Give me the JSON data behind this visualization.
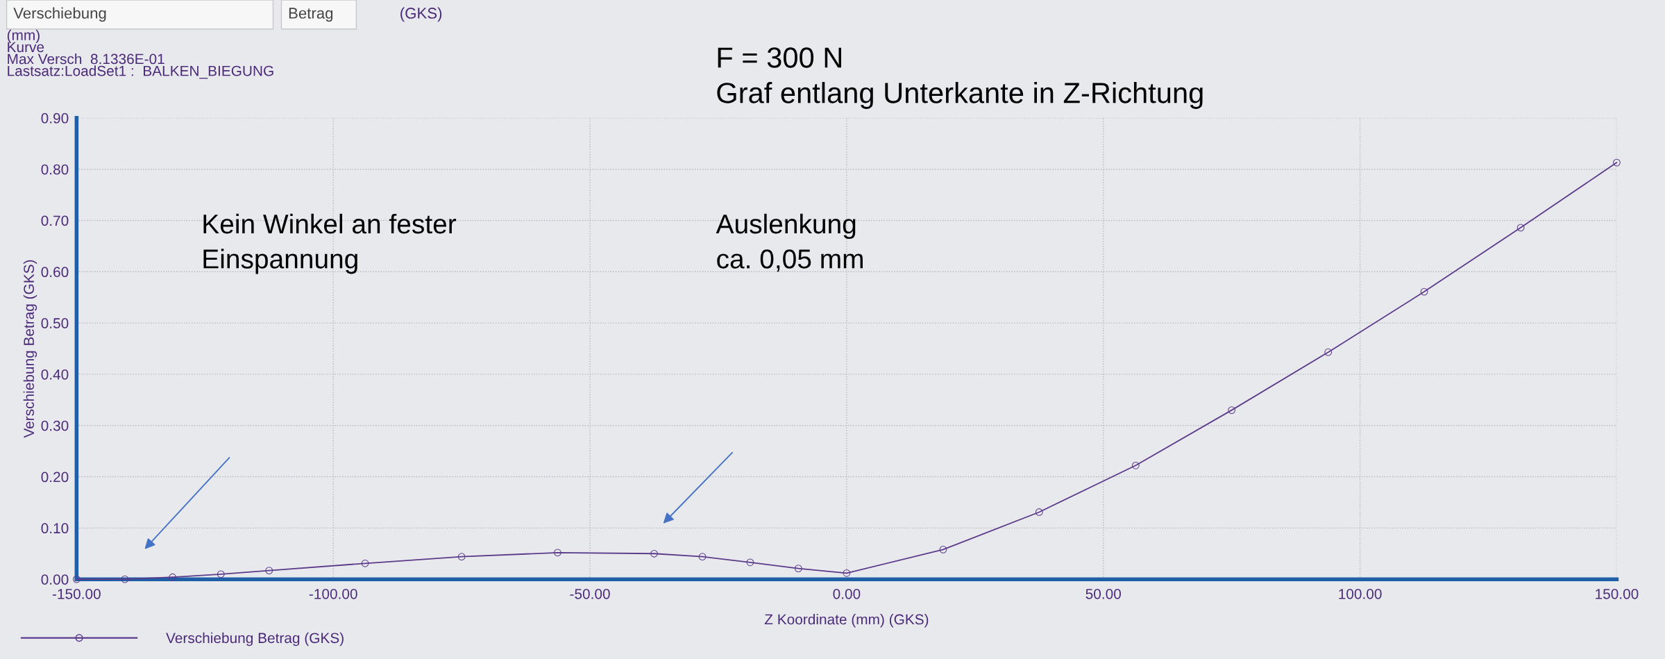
{
  "chart_data": {
    "type": "line",
    "title": "F = 300 N\nGraf entlang Unterkante in Z-Richtung",
    "xlabel": "Z Koordinate (mm) (GKS)",
    "ylabel": "Verschiebung Betrag (GKS)",
    "x": [
      -150,
      -140.6,
      -131.3,
      -121.9,
      -112.5,
      -93.8,
      -75,
      -56.3,
      -37.5,
      -28.1,
      -18.8,
      -9.4,
      0,
      18.8,
      37.5,
      56.3,
      75,
      93.8,
      112.5,
      131.3,
      150
    ],
    "series": [
      {
        "name": "Verschiebung Betrag (GKS)",
        "color": "#5b3a8a",
        "values": [
          0.0,
          0.0,
          0.004,
          0.01,
          0.017,
          0.031,
          0.044,
          0.052,
          0.05,
          0.044,
          0.033,
          0.021,
          0.012,
          0.058,
          0.131,
          0.222,
          0.33,
          0.443,
          0.561,
          0.686,
          0.813
        ]
      }
    ],
    "xlim": [
      -150,
      150
    ],
    "xticks": [
      {
        "value": -150,
        "label": "-150.00"
      },
      {
        "value": -100,
        "label": "-100.00"
      },
      {
        "value": -50,
        "label": "-50.00"
      },
      {
        "value": 0,
        "label": "0.00"
      },
      {
        "value": 50,
        "label": "50.00"
      },
      {
        "value": 100,
        "label": "100.00"
      },
      {
        "value": 150,
        "label": "150.00"
      }
    ],
    "ylim": [
      0,
      0.9
    ],
    "yticks": [
      {
        "value": 0,
        "label": "0.00"
      },
      {
        "value": 0.1,
        "label": "0.10"
      },
      {
        "value": 0.2,
        "label": "0.20"
      },
      {
        "value": 0.3,
        "label": "0.30"
      },
      {
        "value": 0.4,
        "label": "0.40"
      },
      {
        "value": 0.5,
        "label": "0.50"
      },
      {
        "value": 0.6,
        "label": "0.60"
      },
      {
        "value": 0.7,
        "label": "0.70"
      },
      {
        "value": 0.8,
        "label": "0.80"
      },
      {
        "value": 0.9,
        "label": "0.90"
      }
    ],
    "grid": true,
    "legend": "bottom left",
    "marker": "circle",
    "line_style": "solid",
    "annotations": [
      "Verschiebung",
      "Betrag",
      "(GKS)",
      "(mm)\nKurve\nMax Versch  8.1336E-01\nLastsatz:LoadSet1 :  BALKEN_BIEGUNG",
      "Kein Winkel an fester\nEinspannung",
      "Auslenkung\nca. 0,05 mm"
    ]
  }
}
